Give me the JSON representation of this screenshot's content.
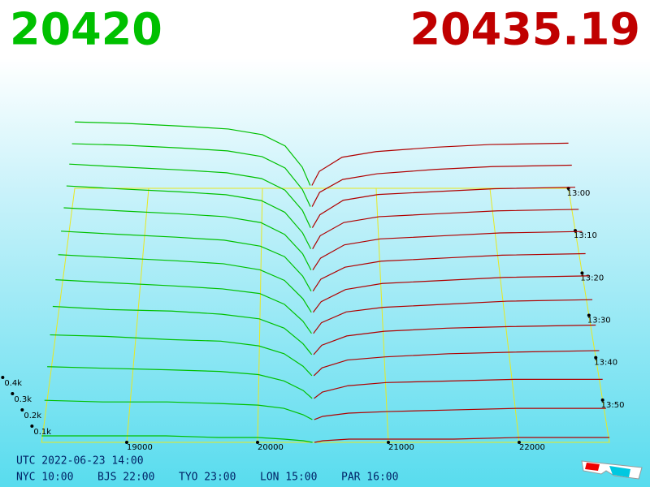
{
  "chart_data": {
    "type": "depth3d",
    "bid_price": 20420,
    "ask_price": 20435.19,
    "bid_color": "#00c000",
    "ask_color": "#b00000",
    "xlim": [
      18350,
      22690
    ],
    "xticks": [
      19000,
      20000,
      21000,
      22000
    ],
    "tlim": [
      0,
      60
    ],
    "tticks": [
      {
        "value": 0,
        "label": "13:00"
      },
      {
        "value": 10,
        "label": "13:10"
      },
      {
        "value": 20,
        "label": "13:20"
      },
      {
        "value": 30,
        "label": "13:30"
      },
      {
        "value": 40,
        "label": "13:40"
      },
      {
        "value": 50,
        "label": "13:50"
      }
    ],
    "zticks": [
      {
        "value": 0.1,
        "label": "0.1k"
      },
      {
        "value": 0.2,
        "label": "0.2k"
      },
      {
        "value": 0.3,
        "label": "0.3k"
      },
      {
        "value": 0.4,
        "label": "0.4k"
      }
    ],
    "bid_prices": [
      18350,
      18800,
      19300,
      19700,
      20000,
      20200,
      20350,
      20420
    ],
    "ask_prices": [
      20435,
      20500,
      20700,
      21000,
      21500,
      22000,
      22690
    ],
    "snapshots": [
      {
        "t": 0,
        "bids": [
          0.47,
          0.46,
          0.44,
          0.42,
          0.38,
          0.3,
          0.15,
          0.02
        ],
        "asks": [
          0.02,
          0.12,
          0.22,
          0.26,
          0.29,
          0.31,
          0.32
        ]
      },
      {
        "t": 5,
        "bids": [
          0.46,
          0.45,
          0.43,
          0.41,
          0.37,
          0.29,
          0.14,
          0.02
        ],
        "asks": [
          0.02,
          0.12,
          0.21,
          0.25,
          0.28,
          0.3,
          0.31
        ]
      },
      {
        "t": 10,
        "bids": [
          0.46,
          0.44,
          0.42,
          0.4,
          0.36,
          0.28,
          0.14,
          0.02
        ],
        "asks": [
          0.02,
          0.11,
          0.21,
          0.25,
          0.27,
          0.29,
          0.3
        ]
      },
      {
        "t": 15,
        "bids": [
          0.45,
          0.43,
          0.41,
          0.39,
          0.35,
          0.27,
          0.13,
          0.02
        ],
        "asks": [
          0.02,
          0.11,
          0.2,
          0.24,
          0.26,
          0.28,
          0.29
        ]
      },
      {
        "t": 20,
        "bids": [
          0.44,
          0.42,
          0.4,
          0.38,
          0.34,
          0.26,
          0.13,
          0.02
        ],
        "asks": [
          0.02,
          0.1,
          0.19,
          0.23,
          0.25,
          0.27,
          0.28
        ]
      },
      {
        "t": 25,
        "bids": [
          0.42,
          0.4,
          0.38,
          0.36,
          0.32,
          0.25,
          0.12,
          0.02
        ],
        "asks": [
          0.02,
          0.1,
          0.18,
          0.22,
          0.24,
          0.26,
          0.27
        ]
      },
      {
        "t": 30,
        "bids": [
          0.4,
          0.38,
          0.36,
          0.34,
          0.3,
          0.23,
          0.11,
          0.02
        ],
        "asks": [
          0.02,
          0.09,
          0.17,
          0.21,
          0.23,
          0.25,
          0.26
        ]
      },
      {
        "t": 35,
        "bids": [
          0.37,
          0.35,
          0.33,
          0.31,
          0.28,
          0.21,
          0.1,
          0.02
        ],
        "asks": [
          0.02,
          0.09,
          0.16,
          0.19,
          0.21,
          0.23,
          0.24
        ]
      },
      {
        "t": 40,
        "bids": [
          0.33,
          0.31,
          0.3,
          0.28,
          0.25,
          0.19,
          0.09,
          0.02
        ],
        "asks": [
          0.02,
          0.08,
          0.14,
          0.17,
          0.19,
          0.2,
          0.21
        ]
      },
      {
        "t": 45,
        "bids": [
          0.28,
          0.27,
          0.25,
          0.24,
          0.21,
          0.16,
          0.08,
          0.02
        ],
        "asks": [
          0.02,
          0.07,
          0.12,
          0.14,
          0.16,
          0.17,
          0.18
        ]
      },
      {
        "t": 50,
        "bids": [
          0.21,
          0.2,
          0.19,
          0.18,
          0.16,
          0.12,
          0.06,
          0.01
        ],
        "asks": [
          0.01,
          0.05,
          0.09,
          0.11,
          0.12,
          0.13,
          0.13
        ]
      },
      {
        "t": 55,
        "bids": [
          0.13,
          0.12,
          0.12,
          0.11,
          0.1,
          0.08,
          0.04,
          0.01
        ],
        "asks": [
          0.01,
          0.03,
          0.05,
          0.06,
          0.07,
          0.08,
          0.08
        ]
      },
      {
        "t": 60,
        "bids": [
          0.04,
          0.04,
          0.04,
          0.03,
          0.03,
          0.02,
          0.01,
          0
        ],
        "asks": [
          0,
          0.01,
          0.02,
          0.02,
          0.02,
          0.03,
          0.03
        ]
      }
    ],
    "clock_utc": "UTC 2022-06-23 14:00",
    "clocks": [
      "NYC 10:00",
      "BJS 22:00",
      "TYO 23:00",
      "LON 15:00",
      "PAR 16:00"
    ]
  }
}
